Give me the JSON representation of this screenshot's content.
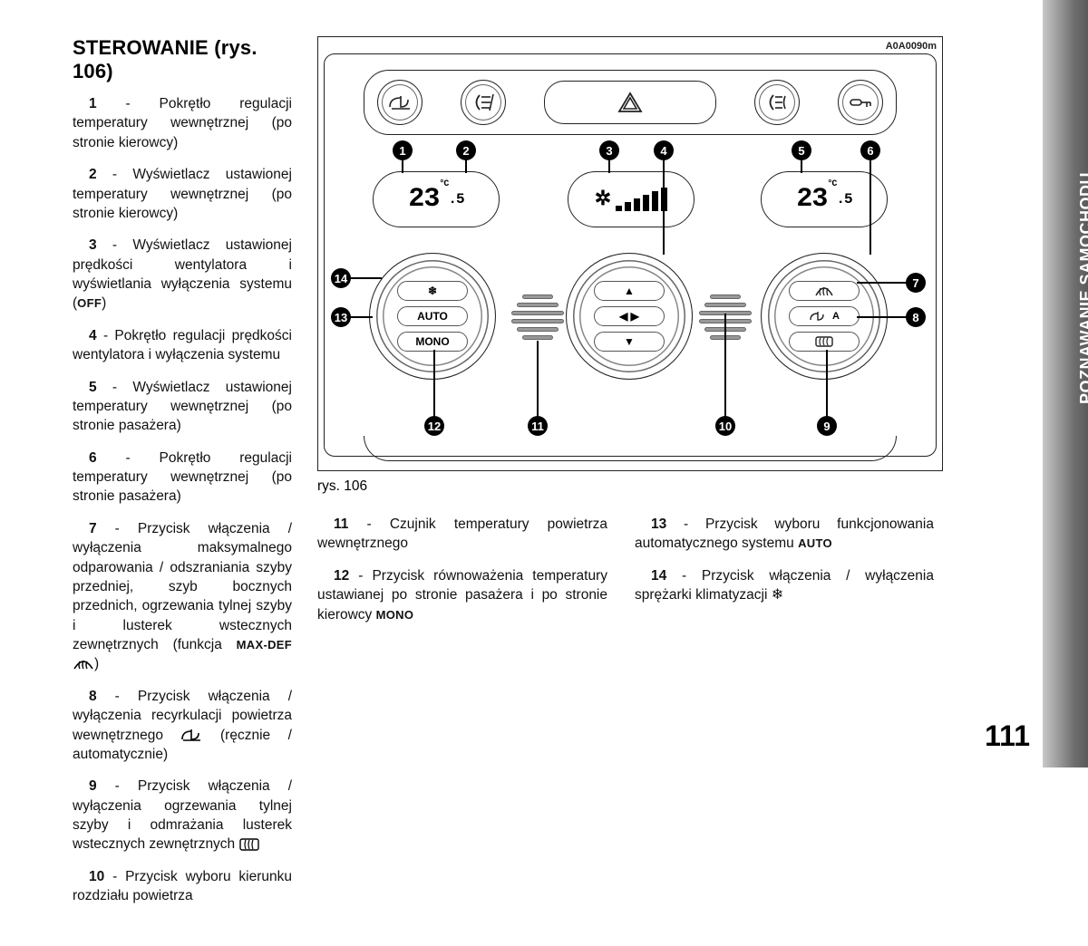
{
  "side_tab": "POZNAWANIE SAMOCHODU",
  "page_number": "111",
  "heading": "STEROWANIE (rys. 106)",
  "figure": {
    "code": "A0A0090m",
    "caption": "rys. 106",
    "lcd_left": "23",
    "lcd_left_suffix": ".5",
    "lcd_left_unit": "°C",
    "lcd_right": "23",
    "lcd_right_suffix": ".5",
    "lcd_right_unit": "°C",
    "dial_left": {
      "top": "❄",
      "mid": "AUTO",
      "bot": "MONO"
    },
    "dial_mid": {
      "top": "▲",
      "mid": "◀ ▶",
      "bot": "▼"
    },
    "dial_right": {
      "top_icon": "defrost-front",
      "mid_icon": "recirc",
      "mid_suffix": "A",
      "bot_icon": "defrost-rear"
    },
    "callouts": [
      "1",
      "2",
      "3",
      "4",
      "5",
      "6",
      "7",
      "8",
      "9",
      "10",
      "11",
      "12",
      "13",
      "14"
    ]
  },
  "left_items": [
    {
      "n": "1",
      "t": " - Pokrętło regulacji temperatury wewnętrznej (po stronie kierowcy)"
    },
    {
      "n": "2",
      "t": " - Wyświetlacz ustawionej temperatury wewnętrznej (po stronie kierowcy)"
    },
    {
      "n": "3",
      "t": " - Wyświetlacz ustawionej prędkości wentylatora i wyświetlania wyłączenia systemu (",
      "b": "OFF",
      "t2": ")"
    },
    {
      "n": "4",
      "t": " - Pokrętło regulacji prędkości wentylatora i wyłączenia systemu"
    },
    {
      "n": "5",
      "t": " - Wyświetlacz ustawionej temperatury wewnętrznej (po stronie pasażera)"
    },
    {
      "n": "6",
      "t": " - Pokrętło regulacji temperatury wewnętrznej (po stronie pasażera)"
    },
    {
      "n": "7",
      "t": " - Przycisk włączenia / wyłączenia maksymalnego odparowania / odszraniania szyby przedniej, szyb bocznych przednich, ogrzewania tylnej szyby i lusterek wstecznych zewnętrznych (funkcja ",
      "b": "MAX-DEF",
      "icon": "defrost-front",
      "t2": ")"
    },
    {
      "n": "8",
      "t": " - Przycisk włączenia / wyłączenia recyrkulacji powietrza wewnętrznego ",
      "icon": "recirc",
      "t2": " (ręcznie / automatycznie)"
    },
    {
      "n": "9",
      "t": " - Przycisk włączenia / wyłączenia ogrzewania tylnej szyby i odmrażania lusterek wstecznych zewnętrznych ",
      "icon": "defrost-rear"
    },
    {
      "n": "10",
      "t": " - Przycisk wyboru kierunku rozdziału powietrza"
    }
  ],
  "mid_items": [
    {
      "n": "11",
      "t": " - Czujnik temperatury powietrza wewnętrznego"
    },
    {
      "n": "12",
      "t": " - Przycisk równoważenia temperatury ustawianej po stronie pasażera i po stronie kierowcy ",
      "b": "MONO"
    }
  ],
  "right_items": [
    {
      "n": "13",
      "t": " - Przycisk wyboru funkcjonowania automatycznego systemu ",
      "b": "AUTO"
    },
    {
      "n": "14",
      "t": " - Przycisk włączenia / wyłączenia sprężarki klimatyzacji ",
      "icon": "snowflake"
    }
  ]
}
